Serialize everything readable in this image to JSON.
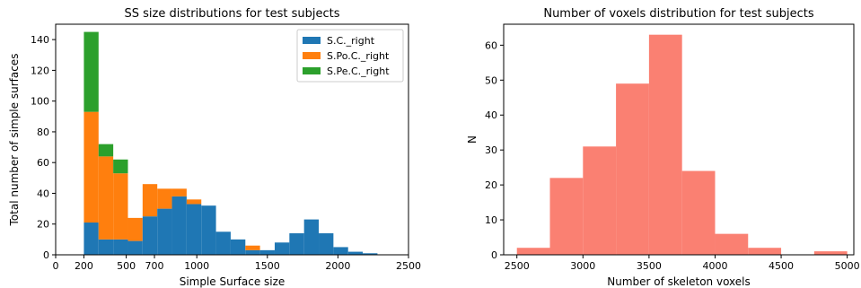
{
  "chart_data": [
    {
      "type": "bar",
      "stacked": true,
      "title": "SS size distributions for test subjects",
      "xlabel": "Simple Surface size",
      "ylabel": "Total number of simple surfaces",
      "xlim": [
        0,
        2500
      ],
      "ylim": [
        0,
        150
      ],
      "xticks": [
        0,
        200,
        500,
        700,
        1000,
        1500,
        2000,
        2500
      ],
      "xtick_labels": [
        "0",
        "200",
        "500",
        "700",
        "1000",
        "1500",
        "2000",
        "2500"
      ],
      "yticks": [
        0,
        20,
        40,
        60,
        80,
        100,
        120,
        140
      ],
      "bin_edges": [
        200,
        304,
        408,
        512,
        616,
        720,
        824,
        928,
        1032,
        1136,
        1240,
        1344,
        1448,
        1552,
        1656,
        1760,
        1864,
        1968,
        2072,
        2176,
        2280
      ],
      "legend_position": "top-right",
      "series": [
        {
          "name": "S.C._right",
          "color": "#1f77b4",
          "values": [
            21,
            10,
            10,
            9,
            25,
            30,
            38,
            33,
            32,
            15,
            10,
            3,
            3,
            8,
            14,
            23,
            14,
            5,
            2,
            1
          ]
        },
        {
          "name": "S.Po.C._right",
          "color": "#ff7f0e",
          "values": [
            72,
            54,
            43,
            15,
            21,
            13,
            5,
            3,
            0,
            0,
            0,
            3,
            0,
            0,
            0,
            0,
            0,
            0,
            0,
            0
          ]
        },
        {
          "name": "S.Pe.C._right",
          "color": "#2ca02c",
          "values": [
            52,
            8,
            9,
            0,
            0,
            0,
            0,
            0,
            0,
            0,
            0,
            0,
            0,
            0,
            0,
            0,
            0,
            0,
            0,
            0
          ]
        }
      ]
    },
    {
      "type": "bar",
      "title": "Number of voxels distribution for test subjects",
      "xlabel": "Number of skeleton voxels",
      "ylabel": "N",
      "xlim": [
        2400,
        5050
      ],
      "ylim": [
        0,
        66
      ],
      "xticks": [
        2500,
        3000,
        3500,
        4000,
        4500,
        5000
      ],
      "xtick_labels": [
        "2500",
        "3000",
        "3500",
        "4000",
        "4500",
        "5000"
      ],
      "yticks": [
        0,
        10,
        20,
        30,
        40,
        50,
        60
      ],
      "color": "#fa8072",
      "bin_edges": [
        2500,
        2750,
        3000,
        3250,
        3500,
        3750,
        4000,
        4250,
        4500,
        4750,
        5000
      ],
      "values": [
        2,
        22,
        31,
        49,
        63,
        24,
        6,
        2,
        0,
        1
      ]
    }
  ]
}
